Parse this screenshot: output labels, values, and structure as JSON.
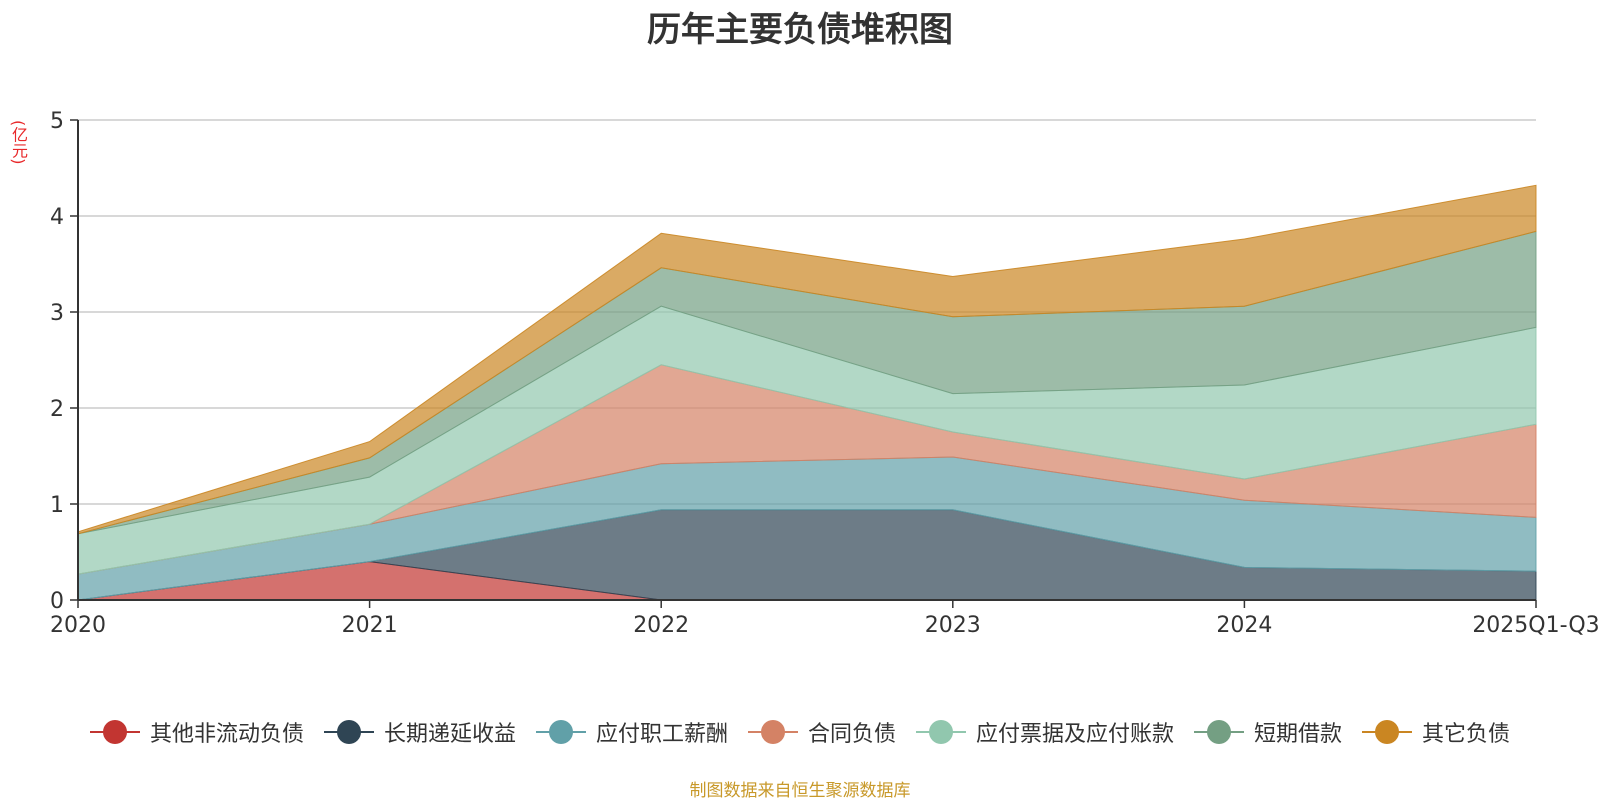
{
  "chart_data": {
    "type": "area",
    "stacked": true,
    "title": "历年主要负债堆积图",
    "unit_label": "(亿元)",
    "source_note": "制图数据来自恒生聚源数据库",
    "categories": [
      "2020",
      "2021",
      "2022",
      "2023",
      "2024",
      "2025Q1-Q3"
    ],
    "ylim": [
      0,
      5
    ],
    "yticks": [
      0,
      1,
      2,
      3,
      4,
      5
    ],
    "grid": true,
    "legend_position": "bottom",
    "series": [
      {
        "name": "其他非流动负债",
        "color": "#c23531",
        "values": [
          0.0,
          0.4,
          0.0,
          0.0,
          0.0,
          0.0
        ]
      },
      {
        "name": "长期递延收益",
        "color": "#2f4554",
        "values": [
          0.0,
          0.0,
          0.94,
          0.94,
          0.34,
          0.3
        ]
      },
      {
        "name": "应付职工薪酬",
        "color": "#61a0a8",
        "values": [
          0.27,
          0.39,
          0.48,
          0.55,
          0.7,
          0.56
        ]
      },
      {
        "name": "合同负债",
        "color": "#d48265",
        "values": [
          0.0,
          0.0,
          1.03,
          0.26,
          0.22,
          0.97
        ]
      },
      {
        "name": "应付票据及应付账款",
        "color": "#91c7ae",
        "values": [
          0.42,
          0.49,
          0.61,
          0.4,
          0.98,
          1.01
        ]
      },
      {
        "name": "短期借款",
        "color": "#749f83",
        "values": [
          0.0,
          0.2,
          0.4,
          0.8,
          0.82,
          1.0
        ]
      },
      {
        "name": "其它负债",
        "color": "#ca8622",
        "values": [
          0.02,
          0.17,
          0.36,
          0.42,
          0.7,
          0.48
        ]
      }
    ]
  },
  "colors": {
    "title": "#333333",
    "unit_label": "#e8282a",
    "source_note": "#c8992a",
    "axis": "#333333",
    "grid": "#cccccc",
    "tick_text": "#333333"
  }
}
